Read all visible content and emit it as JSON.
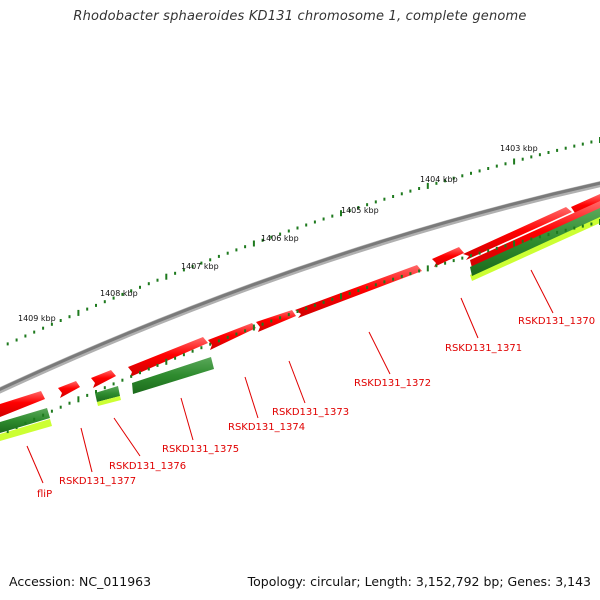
{
  "header": {
    "title": "Rhodobacter sphaeroides KD131 chromosome 1, complete genome"
  },
  "footer": {
    "accession": "Accession: NC_011963",
    "summary": "Topology: circular; Length: 3,152,792 bp; Genes: 3,143"
  },
  "ruler": {
    "ticks": [
      "1403 kbp",
      "1404 kbp",
      "1405 kbp",
      "1406 kbp",
      "1407 kbp",
      "1408 kbp",
      "1409 kbp"
    ]
  },
  "genes": [
    {
      "label": "RSKD131_1370"
    },
    {
      "label": "RSKD131_1371"
    },
    {
      "label": "RSKD131_1372"
    },
    {
      "label": "RSKD131_1373"
    },
    {
      "label": "RSKD131_1374"
    },
    {
      "label": "RSKD131_1375"
    },
    {
      "label": "RSKD131_1376"
    },
    {
      "label": "RSKD131_1377"
    },
    {
      "label": "fliP"
    }
  ],
  "colors": {
    "forward_gene": "#ff0000",
    "reverse_gene": "#2e8b2e",
    "reverse_lower": "#ccff33",
    "backbone": "#808080",
    "label": "#e00000",
    "tick": "#1e7a1e"
  }
}
